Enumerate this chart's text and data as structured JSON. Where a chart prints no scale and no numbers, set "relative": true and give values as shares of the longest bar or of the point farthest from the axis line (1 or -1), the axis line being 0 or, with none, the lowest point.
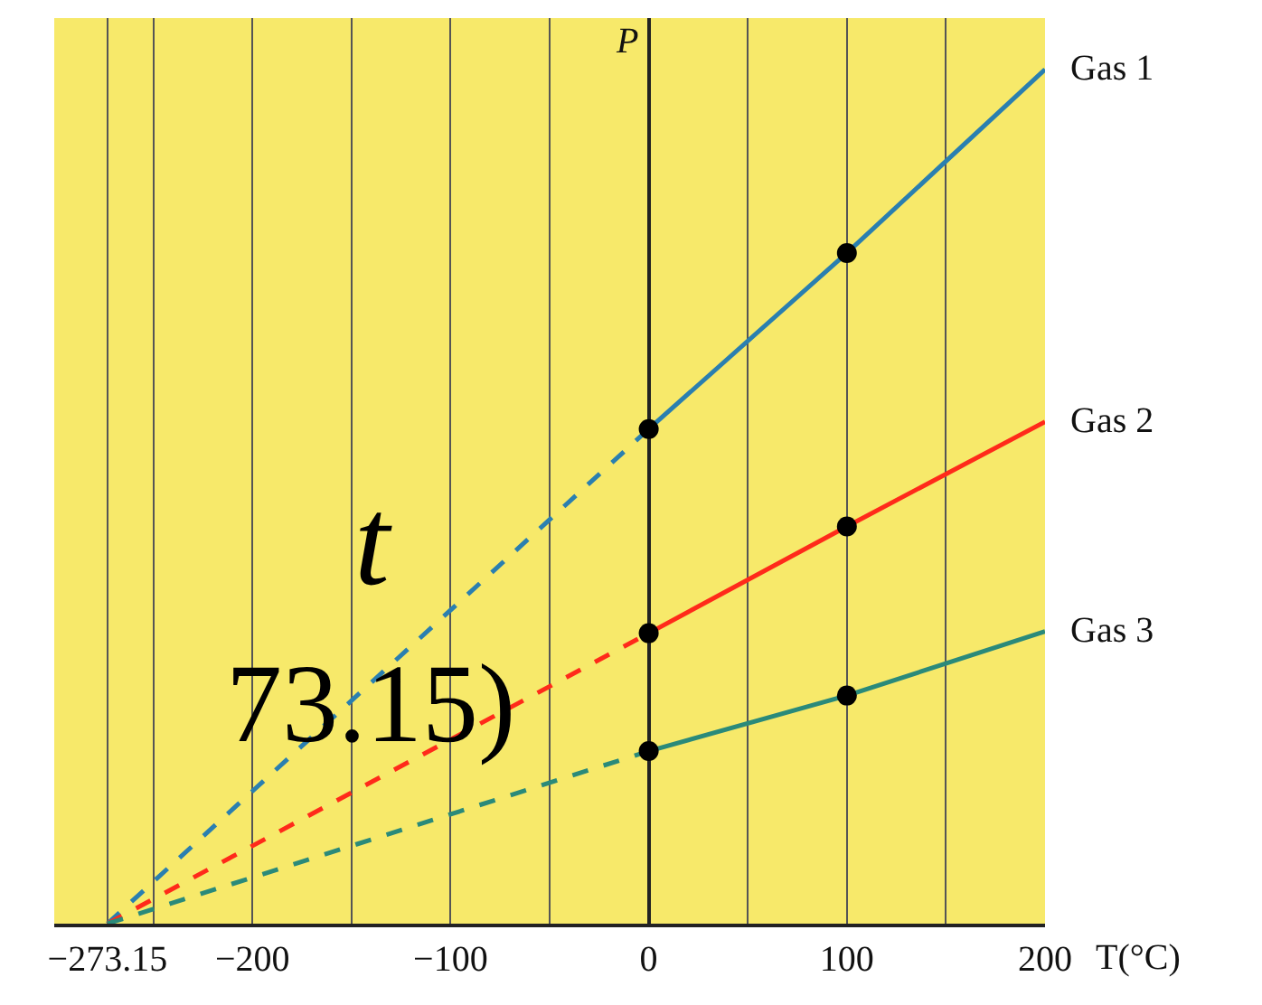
{
  "chart_data": {
    "type": "line",
    "relative": true,
    "xlabel": "T(°C)",
    "ylabel": "P",
    "xlim": [
      -300,
      200
    ],
    "xticks": [
      {
        "value": -300,
        "label": null
      },
      {
        "value": -273.15,
        "label": "−273.15"
      },
      {
        "value": -250,
        "label": null
      },
      {
        "value": -200,
        "label": "−200"
      },
      {
        "value": -150,
        "label": null
      },
      {
        "value": -100,
        "label": "−100"
      },
      {
        "value": -50,
        "label": null
      },
      0,
      {
        "value": 50,
        "label": null
      },
      100,
      {
        "value": 150,
        "label": null
      },
      200
    ],
    "grid": "x",
    "legend": false,
    "marker": "none",
    "series": [
      {
        "x": [
          -273.15,
          0
        ],
        "values": [
          0,
          0.579
        ],
        "color": "#2a7fb0",
        "line_style": "dashed"
      },
      {
        "name": "Gas 1",
        "x": [
          0,
          100,
          200
        ],
        "values": [
          0.579,
          0.785,
          1
        ],
        "color": "#2a7fb0",
        "line_style": "solid"
      },
      {
        "x": [
          -273.15,
          0
        ],
        "values": [
          0,
          0.34
        ],
        "color": "#ff2a1a",
        "line_style": "dashed"
      },
      {
        "name": "Gas 2",
        "x": [
          0,
          100,
          200
        ],
        "values": [
          0.34,
          0.465,
          0.5875
        ],
        "color": "#ff2a1a",
        "line_style": "solid"
      },
      {
        "x": [
          -273.15,
          0
        ],
        "values": [
          0,
          0.202
        ],
        "color": "#2a8a7a",
        "line_style": "dashed"
      },
      {
        "name": "Gas 3",
        "x": [
          0,
          100,
          200
        ],
        "values": [
          0.202,
          0.267,
          0.342
        ],
        "color": "#2a8a7a",
        "line_style": "solid"
      },
      {
        "type": "scatter",
        "marker": "circle",
        "x": [
          0,
          100,
          0,
          100,
          0,
          100
        ],
        "values": [
          0.579,
          0.785,
          0.34,
          0.465,
          0.202,
          0.267
        ],
        "color": "#000000"
      }
    ],
    "annotations": [
      "t",
      "73.15)"
    ]
  }
}
